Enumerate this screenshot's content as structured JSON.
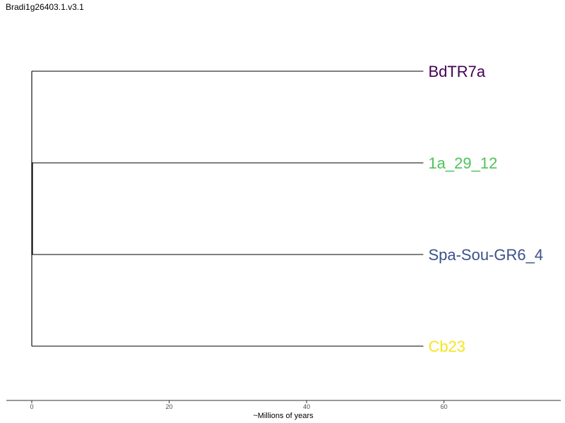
{
  "title": "Bradi1g26403.1.v3.1",
  "tree": {
    "tips": [
      {
        "label": "BdTR7a",
        "color": "#440154",
        "age": 57
      },
      {
        "label": "1a_29_12",
        "color": "#4DC35A",
        "age": 57
      },
      {
        "label": "Spa-Sou-GR6_4",
        "color": "#3B518B",
        "age": 57
      },
      {
        "label": "Cb23",
        "color": "#F5E51E",
        "age": 57
      }
    ],
    "branch_color": "#000000"
  },
  "axis": {
    "title": "~Millions of years",
    "ticks": [
      0,
      20,
      40,
      60
    ],
    "tick_labels": [
      "0",
      "20",
      "40",
      "60"
    ],
    "range": [
      -3.7,
      77
    ]
  }
}
